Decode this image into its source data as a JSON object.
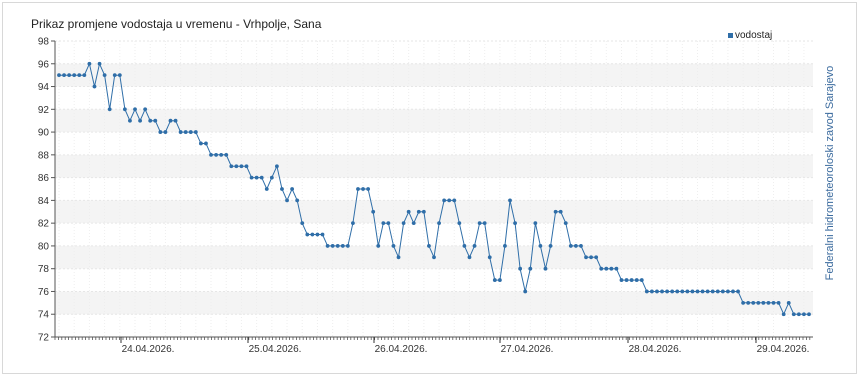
{
  "chart_data": {
    "type": "line",
    "title": "Prikaz promjene vodostaja u vremenu - Vrhpolje, Sana",
    "side_label": "Federalni hidrometeoroloski zavod Sarajevo",
    "legend": "vodostaj",
    "legend_position": "top-right",
    "grid": true,
    "ylim": [
      72,
      98
    ],
    "yticks": [
      "72",
      "74",
      "76",
      "78",
      "80",
      "82",
      "84",
      "86",
      "88",
      "90",
      "92",
      "94",
      "96",
      "98"
    ],
    "xticks": [
      "24.04.2026.",
      "25.04.2026.",
      "26.04.2026.",
      "27.04.2026.",
      "28.04.2026.",
      "29.04.2026."
    ],
    "series_color": "#2f6ea8",
    "series": [
      {
        "name": "vodostaj",
        "values": [
          95,
          95,
          95,
          95,
          95,
          95,
          96,
          94,
          96,
          95,
          92,
          95,
          95,
          92,
          91,
          92,
          91,
          92,
          91,
          91,
          90,
          90,
          91,
          91,
          90,
          90,
          90,
          90,
          89,
          89,
          88,
          88,
          88,
          88,
          87,
          87,
          87,
          87,
          86,
          86,
          86,
          85,
          86,
          87,
          85,
          84,
          85,
          84,
          82,
          81,
          81,
          81,
          81,
          80,
          80,
          80,
          80,
          80,
          82,
          85,
          85,
          85,
          83,
          80,
          82,
          82,
          80,
          79,
          82,
          83,
          82,
          83,
          83,
          80,
          79,
          82,
          84,
          84,
          84,
          82,
          80,
          79,
          80,
          82,
          82,
          79,
          77,
          77,
          80,
          84,
          82,
          78,
          76,
          78,
          82,
          80,
          78,
          80,
          83,
          83,
          82,
          80,
          80,
          80,
          79,
          79,
          79,
          78,
          78,
          78,
          78,
          77,
          77,
          77,
          77,
          77,
          76,
          76,
          76,
          76,
          76,
          76,
          76,
          76,
          76,
          76,
          76,
          76,
          76,
          76,
          76,
          76,
          76,
          76,
          76,
          75,
          75,
          75,
          75,
          75,
          75,
          75,
          75,
          74,
          75,
          74,
          74,
          74,
          74
        ]
      }
    ]
  }
}
